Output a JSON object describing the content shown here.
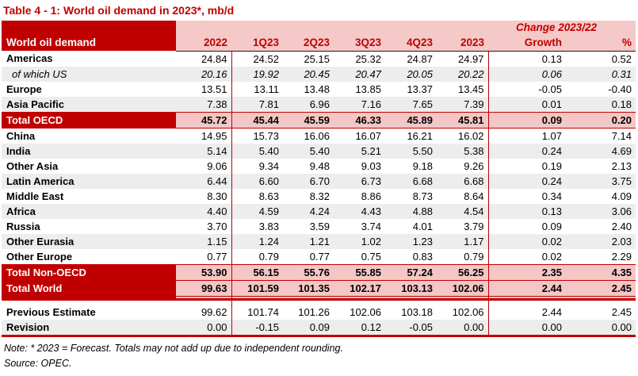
{
  "title": "Table 4 - 1: World oil demand in 2023*, mb/d",
  "header": {
    "corner": "World oil demand",
    "change_label": "Change 2023/22",
    "columns": [
      "2022",
      "1Q23",
      "2Q23",
      "3Q23",
      "4Q23",
      "2023",
      "Growth",
      "%"
    ]
  },
  "table": {
    "rows": [
      {
        "label": "Americas",
        "type": "normal",
        "shade": false,
        "values": [
          "24.84",
          "24.52",
          "25.15",
          "25.32",
          "24.87",
          "24.97",
          "0.13",
          "0.52"
        ]
      },
      {
        "label": "of which US",
        "type": "us",
        "shade": true,
        "values": [
          "20.16",
          "19.92",
          "20.45",
          "20.47",
          "20.05",
          "20.22",
          "0.06",
          "0.31"
        ]
      },
      {
        "label": "Europe",
        "type": "normal",
        "shade": false,
        "values": [
          "13.51",
          "13.11",
          "13.48",
          "13.85",
          "13.37",
          "13.45",
          "-0.05",
          "-0.40"
        ]
      },
      {
        "label": "Asia Pacific",
        "type": "normal",
        "shade": true,
        "values": [
          "7.38",
          "7.81",
          "6.96",
          "7.16",
          "7.65",
          "7.39",
          "0.01",
          "0.18"
        ]
      },
      {
        "label": "Total OECD",
        "type": "total",
        "shade": false,
        "values": [
          "45.72",
          "45.44",
          "45.59",
          "46.33",
          "45.89",
          "45.81",
          "0.09",
          "0.20"
        ]
      },
      {
        "label": "China",
        "type": "normal",
        "shade": false,
        "values": [
          "14.95",
          "15.73",
          "16.06",
          "16.07",
          "16.21",
          "16.02",
          "1.07",
          "7.14"
        ]
      },
      {
        "label": "India",
        "type": "normal",
        "shade": true,
        "values": [
          "5.14",
          "5.40",
          "5.40",
          "5.21",
          "5.50",
          "5.38",
          "0.24",
          "4.69"
        ]
      },
      {
        "label": "Other Asia",
        "type": "normal",
        "shade": false,
        "values": [
          "9.06",
          "9.34",
          "9.48",
          "9.03",
          "9.18",
          "9.26",
          "0.19",
          "2.13"
        ]
      },
      {
        "label": "Latin America",
        "type": "normal",
        "shade": true,
        "values": [
          "6.44",
          "6.60",
          "6.70",
          "6.73",
          "6.68",
          "6.68",
          "0.24",
          "3.75"
        ]
      },
      {
        "label": "Middle East",
        "type": "normal",
        "shade": false,
        "values": [
          "8.30",
          "8.63",
          "8.32",
          "8.86",
          "8.73",
          "8.64",
          "0.34",
          "4.09"
        ]
      },
      {
        "label": "Africa",
        "type": "normal",
        "shade": true,
        "values": [
          "4.40",
          "4.59",
          "4.24",
          "4.43",
          "4.88",
          "4.54",
          "0.13",
          "3.06"
        ]
      },
      {
        "label": "Russia",
        "type": "normal",
        "shade": false,
        "values": [
          "3.70",
          "3.83",
          "3.59",
          "3.74",
          "4.01",
          "3.79",
          "0.09",
          "2.40"
        ]
      },
      {
        "label": "Other Eurasia",
        "type": "normal",
        "shade": true,
        "values": [
          "1.15",
          "1.24",
          "1.21",
          "1.02",
          "1.23",
          "1.17",
          "0.02",
          "2.03"
        ]
      },
      {
        "label": "Other Europe",
        "type": "normal",
        "shade": false,
        "values": [
          "0.77",
          "0.79",
          "0.77",
          "0.75",
          "0.83",
          "0.79",
          "0.02",
          "2.29"
        ]
      },
      {
        "label": "Total Non-OECD",
        "type": "total",
        "shade": false,
        "values": [
          "53.90",
          "56.15",
          "55.76",
          "55.85",
          "57.24",
          "56.25",
          "2.35",
          "4.35"
        ]
      },
      {
        "label": "Total World",
        "type": "totalworld",
        "shade": false,
        "values": [
          "99.63",
          "101.59",
          "101.35",
          "102.17",
          "103.13",
          "102.06",
          "2.44",
          "2.45"
        ]
      },
      {
        "label": "Previous Estimate",
        "type": "prev",
        "shade": false,
        "values": [
          "99.62",
          "101.74",
          "101.26",
          "102.06",
          "103.18",
          "102.06",
          "2.44",
          "2.45"
        ]
      },
      {
        "label": "Revision",
        "type": "rev",
        "shade": false,
        "values": [
          "0.00",
          "-0.15",
          "0.09",
          "0.12",
          "-0.05",
          "0.00",
          "0.00",
          "0.00"
        ]
      }
    ]
  },
  "note": "Note: * 2023 = Forecast. Totals may not add up due to independent rounding.",
  "source": "Source: OPEC.",
  "colors": {
    "accent_dark_red": "#C00000",
    "header_pink": "#F6C9C9",
    "total_row_pink": "#F5C6C6",
    "stripe_gray": "#EDEDED",
    "header_rule_black": "#1a1a1a"
  }
}
